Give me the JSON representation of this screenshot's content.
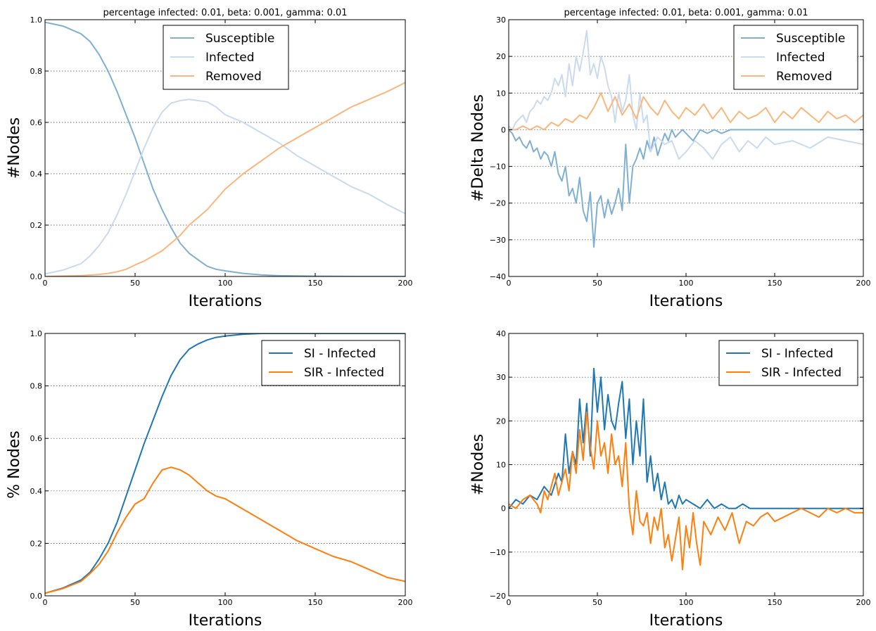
{
  "chart_data": [
    {
      "type": "line",
      "title": "percentage infected: 0.01, beta: 0.001, gamma: 0.01",
      "xlabel": "Iterations",
      "ylabel": "#Nodes",
      "xlim": [
        0,
        200
      ],
      "ylim": [
        0,
        1.0
      ],
      "xticks": [
        0,
        50,
        100,
        150,
        200
      ],
      "yticks": [
        0.0,
        0.2,
        0.4,
        0.6,
        0.8,
        1.0
      ],
      "ytick_labels": [
        "0.0",
        "0.2",
        "0.4",
        "0.6",
        "0.8",
        "1.0"
      ],
      "grid": "y",
      "legend_position": "top-center",
      "series": [
        {
          "name": "Susceptible",
          "color": "#7fb0d2",
          "x": [
            0,
            10,
            20,
            25,
            30,
            35,
            40,
            45,
            50,
            55,
            60,
            65,
            70,
            75,
            80,
            85,
            90,
            95,
            100,
            110,
            120,
            130,
            150,
            175,
            200
          ],
          "y": [
            0.99,
            0.975,
            0.945,
            0.915,
            0.865,
            0.8,
            0.72,
            0.63,
            0.54,
            0.44,
            0.34,
            0.26,
            0.19,
            0.13,
            0.09,
            0.065,
            0.04,
            0.028,
            0.022,
            0.012,
            0.006,
            0.003,
            0.001,
            0.0,
            0.0
          ]
        },
        {
          "name": "Infected",
          "color": "#c9dbee",
          "x": [
            0,
            10,
            20,
            25,
            30,
            35,
            40,
            45,
            50,
            55,
            60,
            65,
            70,
            75,
            80,
            85,
            90,
            95,
            100,
            110,
            120,
            130,
            140,
            150,
            160,
            170,
            180,
            190,
            200
          ],
          "y": [
            0.01,
            0.025,
            0.05,
            0.08,
            0.12,
            0.17,
            0.24,
            0.32,
            0.41,
            0.5,
            0.58,
            0.64,
            0.675,
            0.685,
            0.69,
            0.685,
            0.68,
            0.66,
            0.63,
            0.6,
            0.56,
            0.52,
            0.47,
            0.43,
            0.39,
            0.35,
            0.32,
            0.28,
            0.245
          ]
        },
        {
          "name": "Removed",
          "color": "#fbb67c",
          "x": [
            0,
            20,
            30,
            35,
            40,
            45,
            50,
            55,
            60,
            65,
            70,
            75,
            80,
            85,
            90,
            95,
            100,
            110,
            120,
            130,
            140,
            150,
            160,
            170,
            180,
            190,
            200
          ],
          "y": [
            0.0,
            0.003,
            0.008,
            0.012,
            0.018,
            0.028,
            0.045,
            0.06,
            0.08,
            0.1,
            0.13,
            0.16,
            0.2,
            0.23,
            0.26,
            0.3,
            0.34,
            0.4,
            0.45,
            0.5,
            0.54,
            0.58,
            0.62,
            0.66,
            0.69,
            0.72,
            0.755
          ]
        }
      ]
    },
    {
      "type": "line",
      "title": "percentage infected: 0.01, beta: 0.001, gamma: 0.01",
      "xlabel": "Iterations",
      "ylabel": "#Delta Nodes",
      "xlim": [
        0,
        200
      ],
      "ylim": [
        -40,
        30
      ],
      "xticks": [
        0,
        50,
        100,
        150,
        200
      ],
      "yticks": [
        -40,
        -30,
        -20,
        -10,
        0,
        10,
        20,
        30
      ],
      "ytick_labels": [
        "−40",
        "−30",
        "−20",
        "−10",
        "0",
        "10",
        "20",
        "30"
      ],
      "grid": "y",
      "legend_position": "top-right",
      "series": [
        {
          "name": "Susceptible",
          "color": "#7fb0d2",
          "x": [
            0,
            2,
            4,
            6,
            8,
            10,
            12,
            14,
            16,
            18,
            20,
            22,
            24,
            26,
            28,
            30,
            32,
            34,
            36,
            38,
            40,
            42,
            44,
            46,
            48,
            50,
            52,
            54,
            56,
            58,
            60,
            62,
            64,
            66,
            68,
            70,
            72,
            74,
            76,
            78,
            80,
            82,
            84,
            86,
            88,
            90,
            92,
            94,
            96,
            98,
            100,
            104,
            108,
            112,
            116,
            120,
            125,
            130,
            135,
            140,
            150,
            160,
            170,
            180,
            190,
            200
          ],
          "y": [
            0,
            -1,
            -3,
            -2,
            -4,
            -5,
            -3,
            -6,
            -5,
            -8,
            -6,
            -7,
            -10,
            -6,
            -12,
            -14,
            -10,
            -18,
            -16,
            -20,
            -13,
            -22,
            -25,
            -17,
            -32,
            -20,
            -18,
            -24,
            -19,
            -23,
            -20,
            -16,
            -22,
            -4,
            -20,
            -10,
            -8,
            -5,
            -8,
            -3,
            -6,
            -2,
            -7,
            -4,
            -1,
            -3,
            0,
            -2,
            -1,
            0,
            -1,
            -3,
            0,
            -1,
            0,
            -1,
            0,
            0,
            0,
            0,
            0,
            0,
            0,
            0,
            0,
            0
          ]
        },
        {
          "name": "Infected",
          "color": "#c9dbee",
          "x": [
            0,
            2,
            4,
            6,
            8,
            10,
            12,
            14,
            16,
            18,
            20,
            22,
            24,
            26,
            28,
            30,
            32,
            34,
            36,
            38,
            40,
            42,
            44,
            46,
            48,
            50,
            52,
            54,
            56,
            58,
            60,
            62,
            64,
            66,
            68,
            70,
            72,
            74,
            76,
            78,
            80,
            84,
            88,
            92,
            96,
            100,
            105,
            110,
            115,
            120,
            125,
            130,
            135,
            140,
            145,
            150,
            160,
            170,
            180,
            190,
            200
          ],
          "y": [
            1,
            0,
            2,
            3,
            4,
            2,
            5,
            6,
            8,
            7,
            9,
            8,
            10,
            14,
            12,
            15,
            9,
            18,
            12,
            20,
            16,
            21,
            27,
            15,
            18,
            14,
            20,
            17,
            12,
            9,
            2,
            10,
            5,
            8,
            15,
            4,
            0,
            10,
            2,
            4,
            -6,
            -2,
            -4,
            -3,
            -8,
            -6,
            -3,
            -5,
            -8,
            -4,
            -2,
            -6,
            -3,
            -5,
            -2,
            -4,
            -3,
            -5,
            -2,
            -3,
            -4
          ]
        },
        {
          "name": "Removed",
          "color": "#fbb67c",
          "x": [
            0,
            4,
            8,
            12,
            16,
            20,
            24,
            28,
            32,
            36,
            40,
            44,
            48,
            52,
            56,
            60,
            64,
            68,
            72,
            76,
            80,
            84,
            88,
            92,
            96,
            100,
            105,
            110,
            115,
            120,
            125,
            130,
            135,
            140,
            145,
            150,
            155,
            160,
            165,
            170,
            175,
            180,
            185,
            190,
            195,
            200
          ],
          "y": [
            0,
            0,
            1,
            0,
            1,
            0,
            2,
            1,
            3,
            2,
            4,
            3,
            6,
            10,
            5,
            9,
            4,
            7,
            3,
            9,
            6,
            4,
            8,
            5,
            3,
            6,
            4,
            7,
            3,
            6,
            2,
            5,
            3,
            4,
            6,
            2,
            5,
            3,
            6,
            4,
            2,
            5,
            3,
            4,
            2,
            4
          ]
        }
      ]
    },
    {
      "type": "line",
      "title": "",
      "xlabel": "Iterations",
      "ylabel": "% Nodes",
      "xlim": [
        0,
        200
      ],
      "ylim": [
        0,
        1.0
      ],
      "xticks": [
        0,
        50,
        100,
        150,
        200
      ],
      "yticks": [
        0.0,
        0.2,
        0.4,
        0.6,
        0.8,
        1.0
      ],
      "ytick_labels": [
        "0.0",
        "0.2",
        "0.4",
        "0.6",
        "0.8",
        "1.0"
      ],
      "grid": "y",
      "legend_position": "top-right",
      "series": [
        {
          "name": "SI - Infected",
          "color": "#1f77b4",
          "x": [
            0,
            10,
            20,
            25,
            30,
            35,
            40,
            45,
            50,
            55,
            60,
            65,
            70,
            75,
            80,
            85,
            90,
            95,
            100,
            110,
            120,
            130,
            150,
            200
          ],
          "y": [
            0.01,
            0.03,
            0.06,
            0.09,
            0.14,
            0.2,
            0.28,
            0.38,
            0.48,
            0.58,
            0.67,
            0.76,
            0.84,
            0.9,
            0.94,
            0.96,
            0.975,
            0.985,
            0.99,
            0.997,
            1.0,
            1.0,
            1.0,
            1.0
          ]
        },
        {
          "name": "SIR - Infected",
          "color": "#ff7f0e",
          "x": [
            0,
            10,
            20,
            25,
            30,
            35,
            40,
            45,
            50,
            55,
            60,
            65,
            70,
            75,
            80,
            85,
            90,
            95,
            100,
            110,
            120,
            130,
            140,
            150,
            160,
            170,
            180,
            190,
            200
          ],
          "y": [
            0.01,
            0.028,
            0.055,
            0.085,
            0.12,
            0.17,
            0.24,
            0.3,
            0.35,
            0.37,
            0.43,
            0.48,
            0.49,
            0.48,
            0.46,
            0.43,
            0.4,
            0.38,
            0.37,
            0.33,
            0.29,
            0.25,
            0.21,
            0.18,
            0.15,
            0.13,
            0.1,
            0.07,
            0.055
          ]
        }
      ]
    },
    {
      "type": "line",
      "title": "",
      "xlabel": "Iterations",
      "ylabel": "#Nodes",
      "xlim": [
        0,
        200
      ],
      "ylim": [
        -20,
        40
      ],
      "xticks": [
        0,
        50,
        100,
        150,
        200
      ],
      "yticks": [
        -20,
        -10,
        0,
        10,
        20,
        30,
        40
      ],
      "ytick_labels": [
        "−20",
        "−10",
        "0",
        "10",
        "20",
        "30",
        "40"
      ],
      "grid": "y",
      "legend_position": "top-right",
      "series": [
        {
          "name": "SI - Infected",
          "color": "#1f77b4",
          "x": [
            0,
            4,
            8,
            12,
            16,
            20,
            24,
            28,
            30,
            32,
            34,
            36,
            38,
            40,
            42,
            44,
            46,
            48,
            50,
            52,
            54,
            56,
            58,
            60,
            62,
            64,
            66,
            68,
            70,
            72,
            74,
            76,
            78,
            80,
            82,
            84,
            86,
            88,
            90,
            92,
            94,
            96,
            98,
            100,
            104,
            108,
            112,
            116,
            120,
            124,
            128,
            132,
            136,
            140,
            150,
            160,
            170,
            180,
            190,
            200
          ],
          "y": [
            0,
            2,
            1,
            3,
            2,
            5,
            3,
            8,
            6,
            17,
            8,
            13,
            10,
            25,
            15,
            24,
            12,
            32,
            22,
            30,
            18,
            26,
            20,
            18,
            24,
            29,
            16,
            25,
            10,
            20,
            12,
            25,
            6,
            12,
            4,
            8,
            2,
            6,
            1,
            2,
            0,
            3,
            1,
            2,
            1,
            0,
            2,
            0,
            1,
            0,
            0,
            1,
            0,
            0,
            0,
            0,
            0,
            0,
            0,
            0
          ]
        },
        {
          "name": "SIR - Infected",
          "color": "#ff7f0e",
          "x": [
            0,
            4,
            8,
            12,
            16,
            18,
            20,
            22,
            24,
            26,
            28,
            30,
            32,
            34,
            36,
            38,
            40,
            42,
            44,
            46,
            48,
            50,
            52,
            54,
            56,
            58,
            60,
            62,
            64,
            66,
            68,
            70,
            72,
            74,
            76,
            78,
            80,
            82,
            84,
            86,
            88,
            90,
            92,
            94,
            96,
            98,
            100,
            102,
            104,
            106,
            108,
            110,
            114,
            118,
            122,
            126,
            130,
            134,
            138,
            142,
            146,
            150,
            155,
            160,
            165,
            170,
            175,
            180,
            185,
            190,
            195,
            200
          ],
          "y": [
            1,
            0,
            2,
            3,
            1,
            -1,
            4,
            2,
            5,
            8,
            3,
            6,
            9,
            4,
            13,
            8,
            18,
            11,
            22,
            14,
            9,
            20,
            12,
            15,
            8,
            17,
            10,
            12,
            5,
            15,
            0,
            -6,
            4,
            -3,
            -4,
            -1,
            -8,
            -2,
            -5,
            0,
            -9,
            -6,
            -12,
            -7,
            -2,
            -14,
            -4,
            -9,
            -1,
            -8,
            -13,
            -3,
            -6,
            -2,
            -5,
            -1,
            -8,
            -3,
            -4,
            -2,
            -1,
            -3,
            -2,
            -1,
            0,
            -1,
            -2,
            0,
            -1,
            0,
            -1,
            -1
          ]
        }
      ]
    }
  ]
}
